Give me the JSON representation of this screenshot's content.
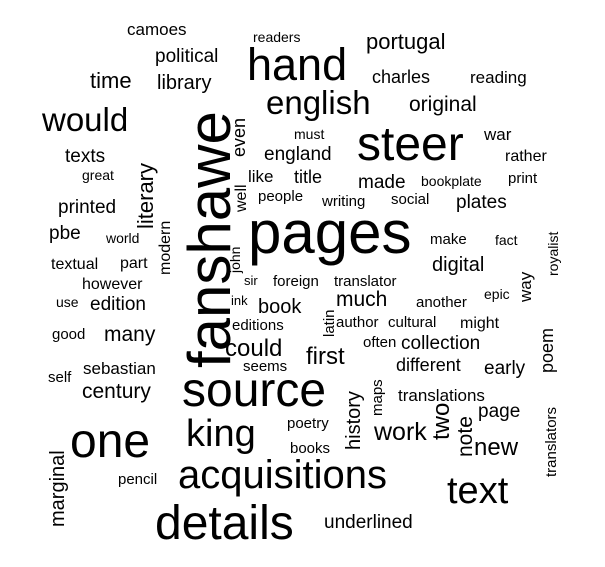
{
  "cloud": {
    "words": [
      {
        "text": "fanshawe",
        "weight": 1.0,
        "rotated": true
      },
      {
        "text": "pages",
        "weight": 0.8,
        "rotated": false
      },
      {
        "text": "one",
        "weight": 0.63,
        "rotated": false
      },
      {
        "text": "details",
        "weight": 0.63,
        "rotated": false
      },
      {
        "text": "source",
        "weight": 0.63,
        "rotated": false
      },
      {
        "text": "steer",
        "weight": 0.6,
        "rotated": false
      },
      {
        "text": "acquisitions",
        "weight": 0.58,
        "rotated": false
      },
      {
        "text": "hand",
        "weight": 0.56,
        "rotated": false
      },
      {
        "text": "king",
        "weight": 0.56,
        "rotated": false
      },
      {
        "text": "text",
        "weight": 0.52,
        "rotated": false
      },
      {
        "text": "english",
        "weight": 0.48,
        "rotated": false
      },
      {
        "text": "would",
        "weight": 0.48,
        "rotated": false
      },
      {
        "text": "work",
        "weight": 0.38,
        "rotated": false
      },
      {
        "text": "could",
        "weight": 0.36,
        "rotated": false
      },
      {
        "text": "new",
        "weight": 0.36,
        "rotated": false
      },
      {
        "text": "two",
        "weight": 0.36,
        "rotated": true
      },
      {
        "text": "first",
        "weight": 0.34,
        "rotated": false
      },
      {
        "text": "literary",
        "weight": 0.34,
        "rotated": true
      },
      {
        "text": "time",
        "weight": 0.32,
        "rotated": false
      },
      {
        "text": "many",
        "weight": 0.3,
        "rotated": false
      },
      {
        "text": "much",
        "weight": 0.3,
        "rotated": false
      },
      {
        "text": "history",
        "weight": 0.3,
        "rotated": true
      },
      {
        "text": "original",
        "weight": 0.3,
        "rotated": false
      },
      {
        "text": "portugal",
        "weight": 0.3,
        "rotated": false
      },
      {
        "text": "library",
        "weight": 0.28,
        "rotated": false
      },
      {
        "text": "century",
        "weight": 0.28,
        "rotated": false
      },
      {
        "text": "digital",
        "weight": 0.28,
        "rotated": false
      },
      {
        "text": "note",
        "weight": 0.28,
        "rotated": true
      },
      {
        "text": "marginal",
        "weight": 0.28,
        "rotated": true
      },
      {
        "text": "book",
        "weight": 0.28,
        "rotated": false
      },
      {
        "text": "political",
        "weight": 0.26,
        "rotated": false
      },
      {
        "text": "collection",
        "weight": 0.26,
        "rotated": false
      },
      {
        "text": "england",
        "weight": 0.26,
        "rotated": false
      },
      {
        "text": "made",
        "weight": 0.26,
        "rotated": false
      },
      {
        "text": "texts",
        "weight": 0.26,
        "rotated": false
      },
      {
        "text": "printed",
        "weight": 0.26,
        "rotated": false
      },
      {
        "text": "edition",
        "weight": 0.26,
        "rotated": false
      },
      {
        "text": "plates",
        "weight": 0.26,
        "rotated": false
      },
      {
        "text": "even",
        "weight": 0.26,
        "rotated": true
      },
      {
        "text": "page",
        "weight": 0.26,
        "rotated": false
      },
      {
        "text": "early",
        "weight": 0.26,
        "rotated": false
      },
      {
        "text": "different",
        "weight": 0.26,
        "rotated": false
      },
      {
        "text": "underlined",
        "weight": 0.26,
        "rotated": false
      },
      {
        "text": "poem",
        "weight": 0.26,
        "rotated": true
      },
      {
        "text": "charles",
        "weight": 0.24,
        "rotated": false
      },
      {
        "text": "title",
        "weight": 0.24,
        "rotated": false
      },
      {
        "text": "pbe",
        "weight": 0.24,
        "rotated": false
      },
      {
        "text": "modern",
        "weight": 0.24,
        "rotated": true
      },
      {
        "text": "translations",
        "weight": 0.22,
        "rotated": false
      },
      {
        "text": "sebastian",
        "weight": 0.22,
        "rotated": false
      },
      {
        "text": "camoes",
        "weight": 0.22,
        "rotated": false
      },
      {
        "text": "like",
        "weight": 0.22,
        "rotated": false
      },
      {
        "text": "war",
        "weight": 0.22,
        "rotated": false
      },
      {
        "text": "rather",
        "weight": 0.22,
        "rotated": false
      },
      {
        "text": "part",
        "weight": 0.22,
        "rotated": false
      },
      {
        "text": "make",
        "weight": 0.2,
        "rotated": false
      },
      {
        "text": "print",
        "weight": 0.2,
        "rotated": false
      },
      {
        "text": "way",
        "weight": 0.22,
        "rotated": true
      },
      {
        "text": "reading",
        "weight": 0.22,
        "rotated": false
      },
      {
        "text": "well",
        "weight": 0.22,
        "rotated": true
      },
      {
        "text": "poetry",
        "weight": 0.22,
        "rotated": false
      },
      {
        "text": "maps",
        "weight": 0.2,
        "rotated": true
      },
      {
        "text": "books",
        "weight": 0.22,
        "rotated": false
      },
      {
        "text": "textual",
        "weight": 0.2,
        "rotated": false
      },
      {
        "text": "however",
        "weight": 0.2,
        "rotated": false
      },
      {
        "text": "translators",
        "weight": 0.2,
        "rotated": true
      },
      {
        "text": "pencil",
        "weight": 0.2,
        "rotated": false
      },
      {
        "text": "good",
        "weight": 0.2,
        "rotated": false
      },
      {
        "text": "self",
        "weight": 0.2,
        "rotated": false
      },
      {
        "text": "another",
        "weight": 0.2,
        "rotated": false
      },
      {
        "text": "might",
        "weight": 0.2,
        "rotated": false
      },
      {
        "text": "author",
        "weight": 0.2,
        "rotated": false
      },
      {
        "text": "cultural",
        "weight": 0.2,
        "rotated": false
      },
      {
        "text": "often",
        "weight": 0.2,
        "rotated": false
      },
      {
        "text": "seems",
        "weight": 0.2,
        "rotated": false
      },
      {
        "text": "editions",
        "weight": 0.2,
        "rotated": false
      },
      {
        "text": "people",
        "weight": 0.2,
        "rotated": false
      },
      {
        "text": "writing",
        "weight": 0.2,
        "rotated": false
      },
      {
        "text": "social",
        "weight": 0.2,
        "rotated": false
      },
      {
        "text": "foreign",
        "weight": 0.2,
        "rotated": false
      },
      {
        "text": "translator",
        "weight": 0.2,
        "rotated": false
      },
      {
        "text": "latin",
        "weight": 0.2,
        "rotated": true
      },
      {
        "text": "epic",
        "weight": 0.2,
        "rotated": false
      },
      {
        "text": "fact",
        "weight": 0.18,
        "rotated": false
      },
      {
        "text": "royalist",
        "weight": 0.18,
        "rotated": true
      },
      {
        "text": "readers",
        "weight": 0.18,
        "rotated": false
      },
      {
        "text": "must",
        "weight": 0.18,
        "rotated": false
      },
      {
        "text": "great",
        "weight": 0.18,
        "rotated": false
      },
      {
        "text": "bookplate",
        "weight": 0.18,
        "rotated": false
      },
      {
        "text": "world",
        "weight": 0.18,
        "rotated": false
      },
      {
        "text": "use",
        "weight": 0.18,
        "rotated": false
      },
      {
        "text": "ink",
        "weight": 0.18,
        "rotated": false
      },
      {
        "text": "sir",
        "weight": 0.18,
        "rotated": false
      },
      {
        "text": "john",
        "weight": 0.18,
        "rotated": true
      }
    ]
  }
}
